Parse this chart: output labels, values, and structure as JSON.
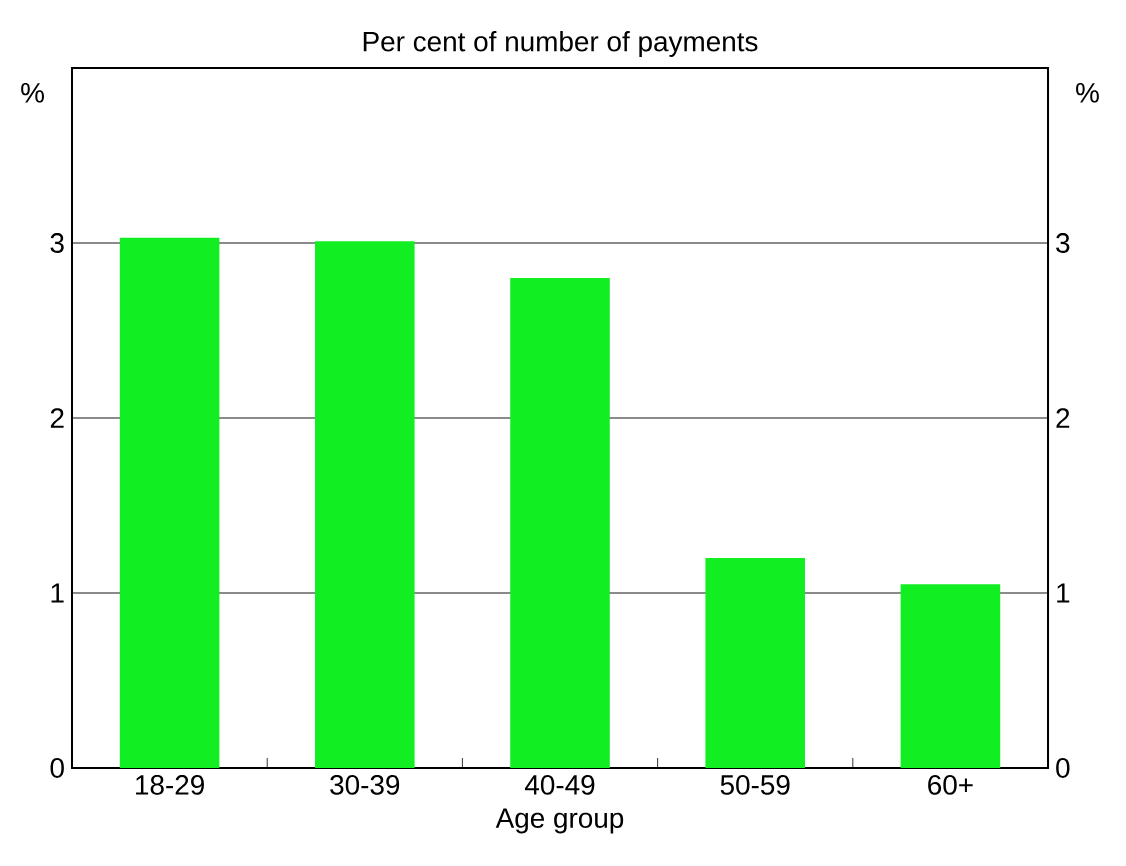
{
  "chart_data": {
    "type": "bar",
    "title": "Per cent of number of payments",
    "xlabel": "Age group",
    "ylabel": "%",
    "y2label": "%",
    "categories": [
      "18-29",
      "30-39",
      "40-49",
      "50-59",
      "60+"
    ],
    "values": [
      3.03,
      3.01,
      2.8,
      1.2,
      1.05
    ],
    "color": "#11ee22",
    "ylim": [
      0,
      4
    ],
    "yticks": [
      0,
      1,
      2,
      3
    ],
    "y2lim": [
      0,
      4
    ],
    "y2ticks": [
      0,
      1,
      2,
      3
    ],
    "grid": "y"
  }
}
